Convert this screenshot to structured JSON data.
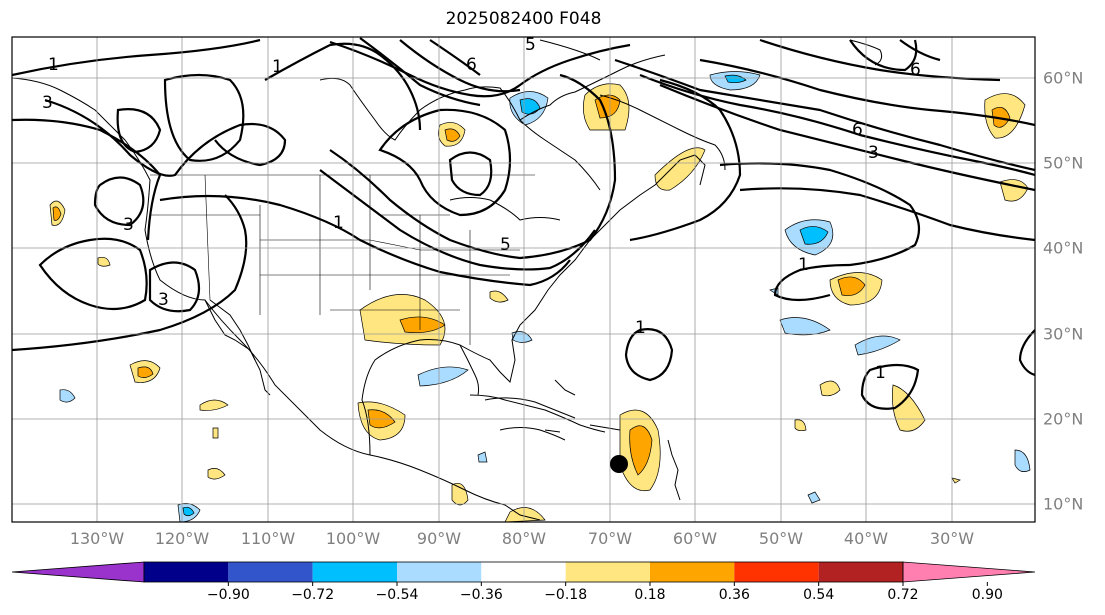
{
  "title": "2025082400 F048",
  "lon_labels": [
    "130°W",
    "120°W",
    "110°W",
    "100°W",
    "90°W",
    "80°W",
    "70°W",
    "60°W",
    "50°W",
    "40°W",
    "30°W"
  ],
  "lat_labels": [
    "60°N",
    "50°N",
    "40°N",
    "30°N",
    "20°N",
    "10°N"
  ],
  "colorbar": {
    "ticks": [
      "−0.90",
      "−0.72",
      "−0.54",
      "−0.36",
      "−0.18",
      "0.18",
      "0.36",
      "0.54",
      "0.72",
      "0.90"
    ],
    "colors": [
      "#9933cc",
      "#00008b",
      "#3355cc",
      "#00bfff",
      "#aadcff",
      "#ffffff",
      "#ffe680",
      "#ffa500",
      "#ff3300",
      "#b22222",
      "#ff80b0"
    ]
  },
  "contour_labels": [
    "1",
    "3",
    "5",
    "6",
    "1",
    "3",
    "1",
    "3",
    "6",
    "5",
    "1",
    "1",
    "1",
    "6",
    "3"
  ],
  "marker": "storm-center"
}
